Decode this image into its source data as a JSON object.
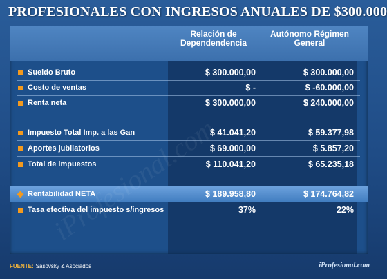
{
  "title": "PROFESIONALES CON INGRESOS ANUALES DE $300.000",
  "columns": {
    "c1": "Relación de Dependendencia",
    "c2": "Autónomo Régimen General"
  },
  "rows": [
    {
      "label": "Sueldo Bruto",
      "v1": "$ 300.000,00",
      "v2": "$ 300.000,00"
    },
    {
      "label": "Costo de ventas",
      "v1": "$ -",
      "v2": "$ -60.000,00"
    },
    {
      "label": "Renta neta",
      "v1": "$ 300.000,00",
      "v2": "$ 240.000,00"
    },
    {
      "label": "Impuesto Total Imp. a las Gan",
      "v1": "$ 41.041,20",
      "v2": "$ 59.377,98"
    },
    {
      "label": "Aportes jubilatorios",
      "v1": "$ 69.000,00",
      "v2": "$ 5.857,20"
    },
    {
      "label": "Total de impuestos",
      "v1": "$ 110.041,20",
      "v2": "$ 65.235,18"
    },
    {
      "label": "Rentabilidad NETA",
      "v1": "$ 189.958,80",
      "v2": "$ 174.764,82"
    },
    {
      "label": "Tasa efectiva del impuesto s/ingresos",
      "v1": "37%",
      "v2": "22%"
    }
  ],
  "watermark": "iProfesional.com",
  "footer": {
    "source_label": "FUENTE:",
    "source_value": "Sasovsky & Asociados",
    "brand": "iProfesional.com"
  },
  "colors": {
    "background": "#1f4c86",
    "header": "#3c70ad",
    "bullet": "#f39a1e",
    "highlight": "#5a93d2"
  }
}
